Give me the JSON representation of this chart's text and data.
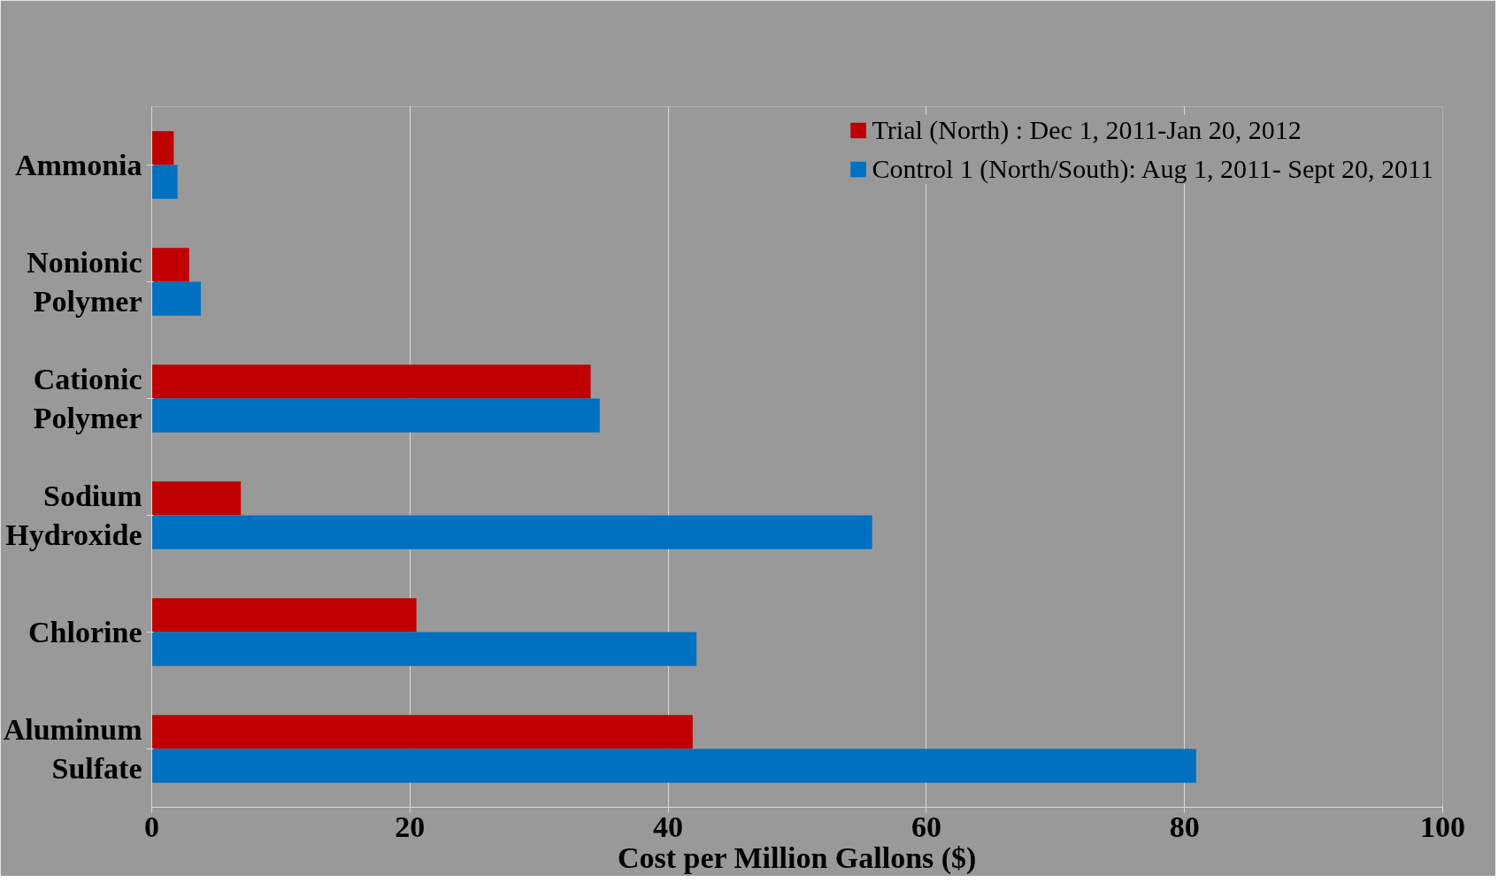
{
  "chart_data": {
    "type": "bar",
    "orientation": "horizontal",
    "xlabel": "Cost per Million Gallons ($)",
    "categories": [
      "Ammonia",
      "Nonionic Polymer",
      "Cationic Polymer",
      "Sodium Hydroxide",
      "Chlorine",
      "Aluminum Sulfate"
    ],
    "series": [
      {
        "name": "Trial (North) : Dec 1, 2011-Jan 20, 2012",
        "color": "#c00000",
        "values": [
          1.7,
          2.9,
          34.0,
          6.9,
          20.5,
          41.9
        ]
      },
      {
        "name": "Control 1 (North/South): Aug 1, 2011- Sept 20, 2011",
        "color": "#0070c0",
        "values": [
          2.0,
          3.8,
          34.7,
          55.8,
          42.2,
          80.9
        ]
      }
    ],
    "xlim": [
      0,
      100
    ],
    "xticks": [
      0,
      20,
      40,
      60,
      80,
      100
    ],
    "grid": "x",
    "legend": "top right"
  }
}
